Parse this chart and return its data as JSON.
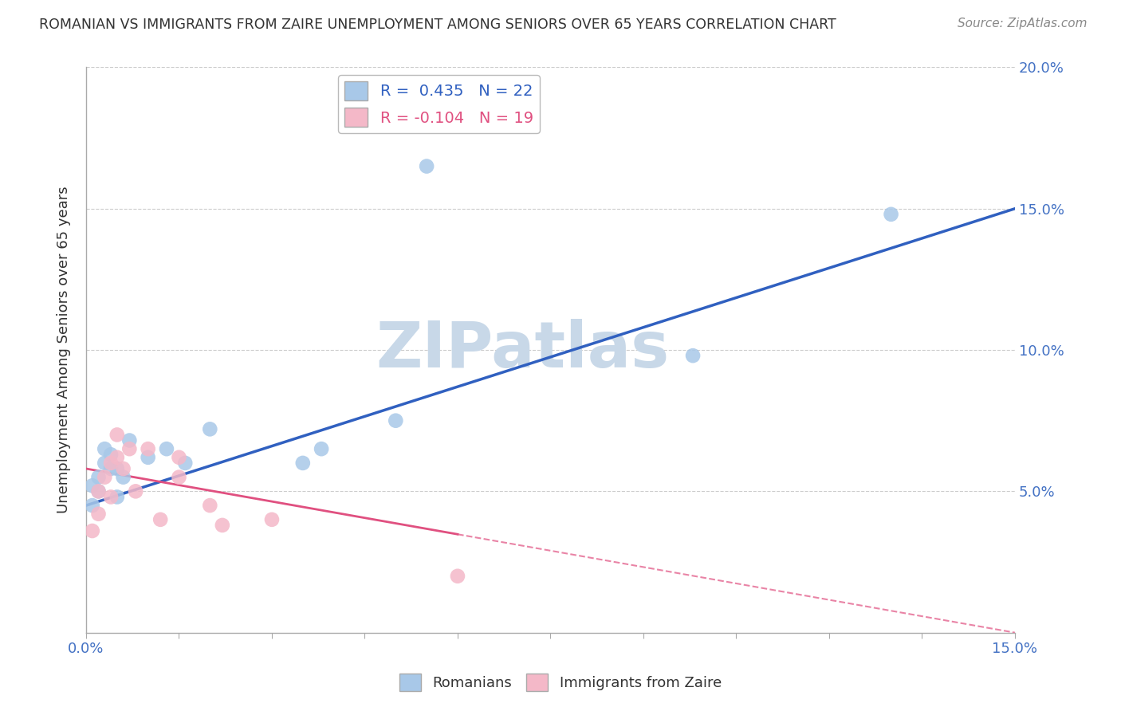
{
  "title": "ROMANIAN VS IMMIGRANTS FROM ZAIRE UNEMPLOYMENT AMONG SENIORS OVER 65 YEARS CORRELATION CHART",
  "source": "Source: ZipAtlas.com",
  "ylabel": "Unemployment Among Seniors over 65 years",
  "xlim": [
    0,
    0.15
  ],
  "ylim": [
    0,
    0.2
  ],
  "xticks": [
    0.0,
    0.15
  ],
  "xtick_labels": [
    "0.0%",
    "15.0%"
  ],
  "ytick_labels": [
    "5.0%",
    "10.0%",
    "15.0%",
    "20.0%"
  ],
  "ytick_values": [
    0.05,
    0.1,
    0.15,
    0.2
  ],
  "romanian_R": 0.435,
  "romanian_N": 22,
  "zaire_R": -0.104,
  "zaire_N": 19,
  "blue_color": "#a8c8e8",
  "pink_color": "#f4b8c8",
  "blue_line_color": "#3060c0",
  "pink_line_color": "#e05080",
  "watermark": "ZIPatlas",
  "watermark_color": "#c8d8e8",
  "romanian_x": [
    0.001,
    0.001,
    0.002,
    0.002,
    0.003,
    0.003,
    0.004,
    0.004,
    0.005,
    0.005,
    0.006,
    0.007,
    0.01,
    0.013,
    0.016,
    0.02,
    0.035,
    0.038,
    0.05,
    0.055,
    0.098,
    0.13
  ],
  "romanian_y": [
    0.045,
    0.052,
    0.05,
    0.055,
    0.06,
    0.065,
    0.058,
    0.063,
    0.048,
    0.058,
    0.055,
    0.068,
    0.062,
    0.065,
    0.06,
    0.072,
    0.06,
    0.065,
    0.075,
    0.165,
    0.098,
    0.148
  ],
  "zaire_x": [
    0.001,
    0.002,
    0.002,
    0.003,
    0.004,
    0.004,
    0.005,
    0.005,
    0.006,
    0.007,
    0.008,
    0.01,
    0.012,
    0.015,
    0.015,
    0.02,
    0.022,
    0.03,
    0.06
  ],
  "zaire_y": [
    0.036,
    0.042,
    0.05,
    0.055,
    0.048,
    0.06,
    0.062,
    0.07,
    0.058,
    0.065,
    0.05,
    0.065,
    0.04,
    0.055,
    0.062,
    0.045,
    0.038,
    0.04,
    0.02
  ],
  "blue_line_start_x": 0.0,
  "blue_line_start_y": 0.045,
  "blue_line_end_x": 0.15,
  "blue_line_end_y": 0.15,
  "pink_line_start_x": 0.0,
  "pink_line_start_y": 0.058,
  "pink_line_end_x": 0.15,
  "pink_line_end_y": 0.0
}
